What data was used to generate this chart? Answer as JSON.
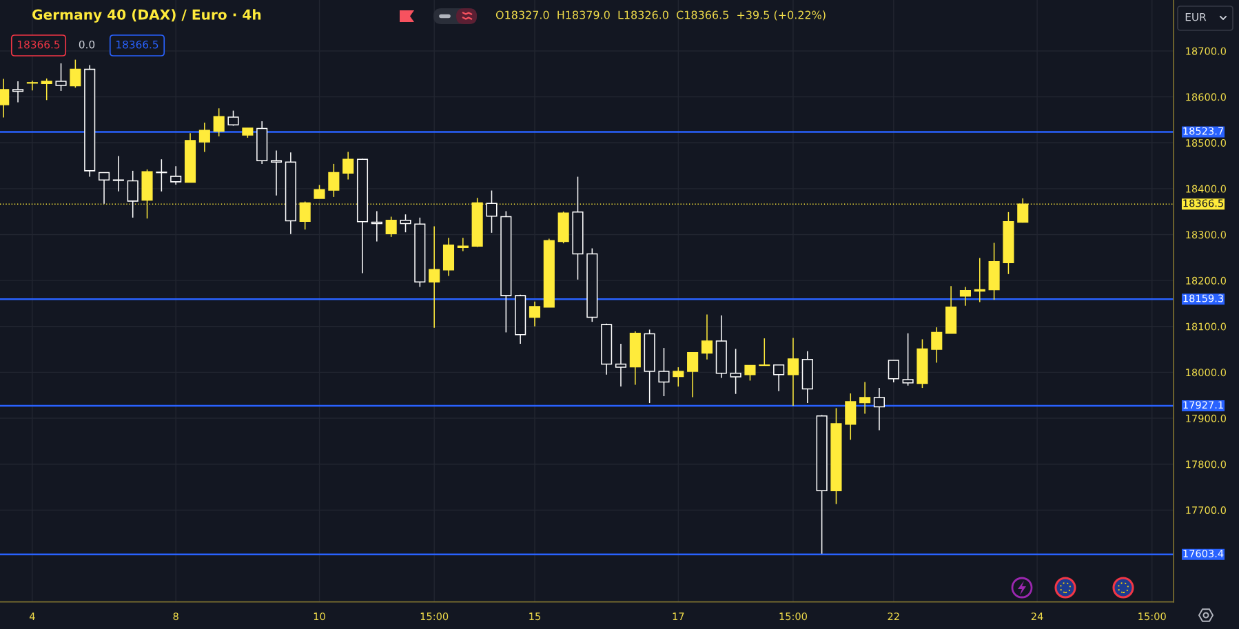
{
  "chart_data": {
    "type": "candlestick",
    "title": "Germany 40 (DAX) / Euro · 4h",
    "categories": [
      null,
      null,
      "4",
      null,
      null,
      null,
      null,
      null,
      null,
      null,
      null,
      null,
      "8",
      null,
      null,
      null,
      null,
      null,
      null,
      null,
      null,
      null,
      "10",
      null,
      null,
      null,
      null,
      null,
      null,
      null,
      "15:00",
      null,
      null,
      null,
      null,
      null,
      null,
      "15",
      null,
      null,
      null,
      null,
      null,
      null,
      null,
      null,
      null,
      "17",
      null,
      null,
      null,
      null,
      null,
      null,
      null,
      "15:00",
      null,
      null,
      null,
      null,
      null,
      null,
      "22",
      null,
      null,
      null,
      null,
      null,
      null,
      null,
      null,
      null,
      "24",
      null,
      null,
      null,
      null,
      null,
      null,
      null,
      "15:00",
      null
    ],
    "ohlc": [
      [
        18583,
        18639,
        18555,
        18616
      ],
      [
        18616,
        18634,
        18588,
        18612
      ],
      [
        18630,
        18635,
        18614,
        18631
      ],
      [
        18629,
        18640,
        18593,
        18634
      ],
      [
        18634,
        18673,
        18613,
        18625
      ],
      [
        18624,
        18681,
        18620,
        18660
      ],
      [
        18660,
        18669,
        18426,
        18439
      ],
      [
        18435,
        18436,
        18367,
        18419
      ],
      [
        18419,
        18471,
        18394,
        18418
      ],
      [
        18417,
        18439,
        18337,
        18373
      ],
      [
        18375,
        18442,
        18335,
        18437
      ],
      [
        18436,
        18464,
        18394,
        18435
      ],
      [
        18427,
        18449,
        18409,
        18415
      ],
      [
        18414,
        18521,
        18414,
        18505
      ],
      [
        18502,
        18544,
        18480,
        18527
      ],
      [
        18525,
        18575,
        18514,
        18557
      ],
      [
        18556,
        18570,
        18537,
        18539
      ],
      [
        18517,
        18532,
        18511,
        18532
      ],
      [
        18531,
        18547,
        18454,
        18461
      ],
      [
        18461,
        18483,
        18385,
        18458
      ],
      [
        18458,
        18479,
        18301,
        18330
      ],
      [
        18329,
        18372,
        18311,
        18369
      ],
      [
        18379,
        18408,
        18379,
        18398
      ],
      [
        18397,
        18454,
        18382,
        18435
      ],
      [
        18434,
        18480,
        18420,
        18464
      ],
      [
        18464,
        18465,
        18216,
        18328
      ],
      [
        18327,
        18351,
        18285,
        18324
      ],
      [
        18302,
        18339,
        18295,
        18331
      ],
      [
        18331,
        18344,
        18305,
        18324
      ],
      [
        18323,
        18337,
        18186,
        18197
      ],
      [
        18197,
        18318,
        18097,
        18224
      ],
      [
        18223,
        18293,
        18210,
        18277
      ],
      [
        18272,
        18293,
        18264,
        18275
      ],
      [
        18275,
        18380,
        18273,
        18369
      ],
      [
        18368,
        18396,
        18304,
        18340
      ],
      [
        18339,
        18351,
        18087,
        18167
      ],
      [
        18167,
        18169,
        18062,
        18082
      ],
      [
        18120,
        18154,
        18100,
        18143
      ],
      [
        18142,
        18291,
        18142,
        18287
      ],
      [
        18285,
        18350,
        18281,
        18347
      ],
      [
        18349,
        18426,
        18202,
        18258
      ],
      [
        18258,
        18270,
        18110,
        18120
      ],
      [
        18104,
        18106,
        17995,
        18018
      ],
      [
        18018,
        18062,
        17969,
        18011
      ],
      [
        18012,
        18089,
        17973,
        18085
      ],
      [
        18084,
        18093,
        17933,
        18002
      ],
      [
        18002,
        18053,
        17948,
        17979
      ],
      [
        17991,
        18011,
        17969,
        18002
      ],
      [
        18002,
        18044,
        17946,
        18043
      ],
      [
        18042,
        18126,
        18028,
        18068
      ],
      [
        18068,
        18124,
        17988,
        17998
      ],
      [
        17998,
        18051,
        17953,
        17990
      ],
      [
        17995,
        18015,
        17982,
        18015
      ],
      [
        18015,
        18074,
        18015,
        18016
      ],
      [
        18016,
        18016,
        17959,
        17995
      ],
      [
        17995,
        18075,
        17927,
        18029
      ],
      [
        18028,
        18046,
        17933,
        17964
      ],
      [
        17905,
        17907,
        17605,
        17742
      ],
      [
        17742,
        17922,
        17713,
        17888
      ],
      [
        17887,
        17954,
        17853,
        17936
      ],
      [
        17934,
        17979,
        17910,
        17945
      ],
      [
        17945,
        17966,
        17874,
        17925
      ],
      [
        18026,
        18026,
        17978,
        17986
      ],
      [
        17984,
        18085,
        17971,
        17977
      ],
      [
        17976,
        18072,
        17966,
        18051
      ],
      [
        18050,
        18098,
        18021,
        18087
      ],
      [
        18085,
        18188,
        18085,
        18142
      ],
      [
        18166,
        18186,
        18145,
        18178
      ],
      [
        18177,
        18249,
        18153,
        18180
      ],
      [
        18180,
        18282,
        18158,
        18241
      ],
      [
        18239,
        18349,
        18214,
        18328
      ],
      [
        18327.0,
        18379.0,
        18326.0,
        18366.5
      ],
      null,
      null,
      null,
      null,
      null,
      null,
      null,
      null,
      null,
      null
    ],
    "colors": [
      "#ffeb3b",
      "#ffffff",
      "#ffeb3b",
      "#ffeb3b",
      "#ffffff",
      "#ffeb3b",
      "#ffffff",
      "#ffffff",
      "#ffffff",
      "#ffffff",
      "#ffeb3b",
      "#ffffff",
      "#ffffff",
      "#ffeb3b",
      "#ffeb3b",
      "#ffeb3b",
      "#ffffff",
      "#ffeb3b",
      "#ffffff",
      "#ffffff",
      "#ffffff",
      "#ffeb3b",
      "#ffeb3b",
      "#ffeb3b",
      "#ffeb3b",
      "#ffffff",
      "#ffffff",
      "#ffeb3b",
      "#ffffff",
      "#ffffff",
      "#ffeb3b",
      "#ffeb3b",
      "#ffeb3b",
      "#ffeb3b",
      "#ffffff",
      "#ffffff",
      "#ffffff",
      "#ffeb3b",
      "#ffeb3b",
      "#ffeb3b",
      "#ffffff",
      "#ffffff",
      "#ffffff",
      "#ffffff",
      "#ffeb3b",
      "#ffffff",
      "#ffffff",
      "#ffeb3b",
      "#ffeb3b",
      "#ffeb3b",
      "#ffffff",
      "#ffffff",
      "#ffeb3b",
      "#ffeb3b",
      "#ffffff",
      "#ffeb3b",
      "#ffffff",
      "#ffffff",
      "#ffeb3b",
      "#ffeb3b",
      "#ffeb3b",
      "#ffffff",
      "#ffffff",
      "#ffffff",
      "#ffeb3b",
      "#ffeb3b",
      "#ffeb3b",
      "#ffeb3b",
      "#ffeb3b",
      "#ffeb3b",
      "#ffeb3b",
      "#ffeb3b",
      null,
      null,
      null,
      null,
      null,
      null,
      null,
      null,
      null,
      null
    ],
    "ylim": [
      17500,
      18811
    ],
    "yticks": [
      {
        "value": 17700,
        "label": "17700.0"
      },
      {
        "value": 17800,
        "label": "17800.0"
      },
      {
        "value": 17900,
        "label": "17900.0"
      },
      {
        "value": 18000,
        "label": "18000.0"
      },
      {
        "value": 18100,
        "label": "18100.0"
      },
      {
        "value": 18200,
        "label": "18200.0"
      },
      {
        "value": 18300,
        "label": "18300.0"
      },
      {
        "value": 18400,
        "label": "18400.0"
      },
      {
        "value": 18500,
        "label": "18500.0"
      },
      {
        "value": 18600,
        "label": "18600.0"
      },
      {
        "value": 18700,
        "label": "18700.0"
      }
    ],
    "grid": true,
    "ref_lines": [
      {
        "axis": "y",
        "value": 18523.7,
        "label": "18523.7",
        "color": "#2962ff",
        "line_style": "solid"
      },
      {
        "axis": "y",
        "value": 18159.3,
        "label": "18159.3",
        "color": "#2962ff",
        "line_style": "solid"
      },
      {
        "axis": "y",
        "value": 17927.1,
        "label": "17927.1",
        "color": "#2962ff",
        "line_style": "solid"
      },
      {
        "axis": "y",
        "value": 17603.4,
        "label": "17603.4",
        "color": "#2962ff",
        "line_style": "solid"
      },
      {
        "axis": "y",
        "value": 18366.5,
        "label": "18366.5",
        "color": "#ffeb3b",
        "line_style": "dotted"
      }
    ],
    "annotations": [
      "O18327.0  H18379.0  L18326.0  C18366.5  +39.5 (+0.22%)",
      "18366.5",
      "0.0",
      "18366.5",
      "EUR"
    ]
  }
}
